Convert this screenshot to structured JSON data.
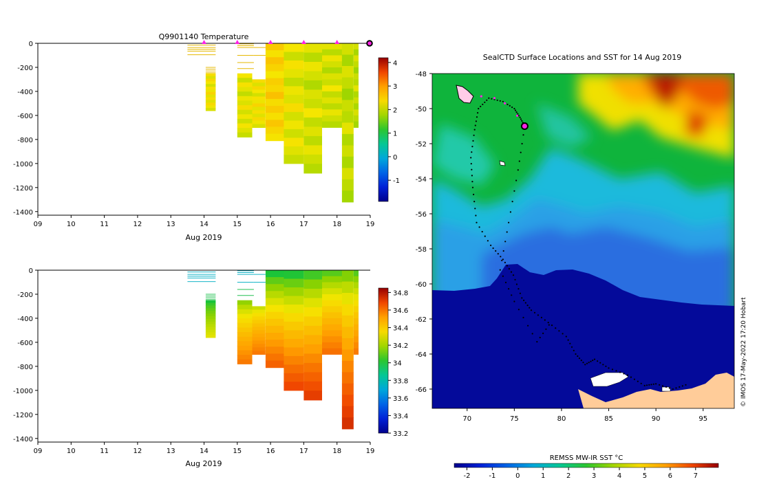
{
  "chart_data": [
    {
      "type": "heatmap",
      "title": "Q9901140  Temperature",
      "xlabel": "Aug 2019",
      "ylabel": "",
      "x_ticks": [
        "09",
        "10",
        "11",
        "12",
        "13",
        "14",
        "15",
        "16",
        "17",
        "18",
        "19"
      ],
      "xlim": [
        9,
        19
      ],
      "y_ticks": [
        "0",
        "-200",
        "-400",
        "-600",
        "-800",
        "-1000",
        "-1200",
        "-1400"
      ],
      "ylim": [
        -1430,
        0
      ],
      "colorbar": {
        "min": -1.9,
        "max": 4.2,
        "ticks": [
          "-1",
          "0",
          "1",
          "2",
          "3",
          "4"
        ]
      },
      "surface_markers_x": [
        14,
        15,
        16,
        17,
        18
      ],
      "current_position_x": 19,
      "profiles": [
        {
          "x0": 15.0,
          "x1": 15.45,
          "min": -780,
          "top": -250,
          "value": 2.1
        },
        {
          "x0": 15.45,
          "x1": 15.85,
          "min": -700,
          "top": -300,
          "value": 2.2
        },
        {
          "x0": 15.85,
          "x1": 16.4,
          "min": -810,
          "top": 0,
          "value": 2.4
        },
        {
          "x0": 16.4,
          "x1": 17.0,
          "min": -1000,
          "top": 0,
          "value": 2.1
        },
        {
          "x0": 17.0,
          "x1": 17.55,
          "min": -1080,
          "top": 0,
          "value": 2.0
        },
        {
          "x0": 17.55,
          "x1": 18.15,
          "min": -700,
          "top": 0,
          "value": 2.0
        },
        {
          "x0": 18.15,
          "x1": 18.5,
          "min": -1320,
          "top": 0,
          "value": 1.9
        },
        {
          "x0": 18.5,
          "x1": 18.65,
          "min": -700,
          "top": 0,
          "value": 1.9
        },
        {
          "x0": 14.05,
          "x1": 14.35,
          "min": -560,
          "top": -250,
          "value": 2.2
        }
      ]
    },
    {
      "type": "heatmap",
      "title": "",
      "xlabel": "Aug 2019",
      "ylabel": "",
      "x_ticks": [
        "09",
        "10",
        "11",
        "12",
        "13",
        "14",
        "15",
        "16",
        "17",
        "18",
        "19"
      ],
      "xlim": [
        9,
        19
      ],
      "y_ticks": [
        "0",
        "-200",
        "-400",
        "-600",
        "-800",
        "-1000",
        "-1200",
        "-1400"
      ],
      "ylim": [
        -1430,
        0
      ],
      "colorbar": {
        "min": 33.2,
        "max": 34.85,
        "ticks": [
          "33.2",
          "33.4",
          "33.6",
          "33.8",
          "34",
          "34.2",
          "34.4",
          "34.6",
          "34.8"
        ]
      },
      "profiles": [
        {
          "x0": 15.0,
          "x1": 15.45,
          "min": -780,
          "top": -250,
          "surface": 34.1,
          "deep": 34.6
        },
        {
          "x0": 15.45,
          "x1": 15.85,
          "min": -700,
          "top": -300,
          "surface": 34.2,
          "deep": 34.6
        },
        {
          "x0": 15.85,
          "x1": 16.4,
          "min": -810,
          "top": 0,
          "surface": 33.9,
          "deep": 34.65
        },
        {
          "x0": 16.4,
          "x1": 17.0,
          "min": -1000,
          "top": 0,
          "surface": 33.9,
          "deep": 34.7
        },
        {
          "x0": 17.0,
          "x1": 17.55,
          "min": -1080,
          "top": 0,
          "surface": 33.95,
          "deep": 34.72
        },
        {
          "x0": 17.55,
          "x1": 18.15,
          "min": -700,
          "top": 0,
          "surface": 34.0,
          "deep": 34.62
        },
        {
          "x0": 18.15,
          "x1": 18.5,
          "min": -1320,
          "top": 0,
          "surface": 34.05,
          "deep": 34.75
        },
        {
          "x0": 18.5,
          "x1": 18.65,
          "min": -700,
          "top": 0,
          "surface": 34.0,
          "deep": 34.6
        },
        {
          "x0": 14.05,
          "x1": 14.35,
          "min": -560,
          "top": -250,
          "surface": 33.95,
          "deep": 34.3
        }
      ]
    },
    {
      "type": "heatmap",
      "title": "SealCTD Surface Locations and SST for 14 Aug 2019",
      "xlabel": "",
      "ylabel": "",
      "x_ticks": [
        "70",
        "75",
        "80",
        "85",
        "90",
        "95"
      ],
      "xlim": [
        66.3,
        98.3
      ],
      "y_ticks": [
        "-48",
        "-50",
        "-52",
        "-54",
        "-56",
        "-58",
        "-60",
        "-62",
        "-64",
        "-66"
      ],
      "ylim": [
        -67.1,
        -48.0
      ],
      "colorbar_label": "REMSS MW-IR SST °C",
      "colorbar": {
        "min": -2.5,
        "max": 7.9,
        "ticks": [
          "-2",
          "-1",
          "0",
          "1",
          "2",
          "3",
          "4",
          "5",
          "6",
          "7"
        ]
      },
      "track": [
        [
          76.1,
          -51.0
        ],
        [
          75.6,
          -50.5
        ],
        [
          75.0,
          -50.0
        ],
        [
          73.8,
          -49.6
        ],
        [
          72.3,
          -49.4
        ],
        [
          71.2,
          -50.0
        ],
        [
          70.8,
          -51.2
        ],
        [
          70.4,
          -52.8
        ],
        [
          70.6,
          -54.5
        ],
        [
          71.0,
          -56.5
        ],
        [
          72.5,
          -57.8
        ],
        [
          73.8,
          -58.6
        ],
        [
          74.9,
          -59.5
        ],
        [
          75.8,
          -60.8
        ],
        [
          76.8,
          -61.5
        ],
        [
          78.6,
          -62.2
        ],
        [
          80.5,
          -63.0
        ],
        [
          81.5,
          -64.0
        ],
        [
          82.5,
          -64.6
        ],
        [
          83.5,
          -64.3
        ],
        [
          85.0,
          -64.8
        ],
        [
          87.0,
          -65.2
        ],
        [
          88.8,
          -65.8
        ],
        [
          90.0,
          -65.7
        ],
        [
          91.8,
          -66.0
        ],
        [
          93.5,
          -65.7
        ],
        [
          76.1,
          -51.0
        ],
        [
          75.4,
          -53.5
        ],
        [
          74.4,
          -56.5
        ],
        [
          73.5,
          -59.2
        ],
        [
          75.0,
          -61.0
        ],
        [
          77.4,
          -63.3
        ],
        [
          79.0,
          -62.1
        ]
      ],
      "recent_positions": [
        [
          71.5,
          -49.3
        ],
        [
          72.9,
          -49.4
        ],
        [
          74.0,
          -49.7
        ],
        [
          75.3,
          -50.4
        ]
      ],
      "current_position": [
        76.1,
        -51.0
      ]
    }
  ],
  "footer_note": "© IMOS 17-May-2022 17:20 Hobart",
  "colors": {
    "marker_magenta": "#ff22e6",
    "land": "#ffcc99",
    "ice_shelf": "#1f0f7a"
  }
}
